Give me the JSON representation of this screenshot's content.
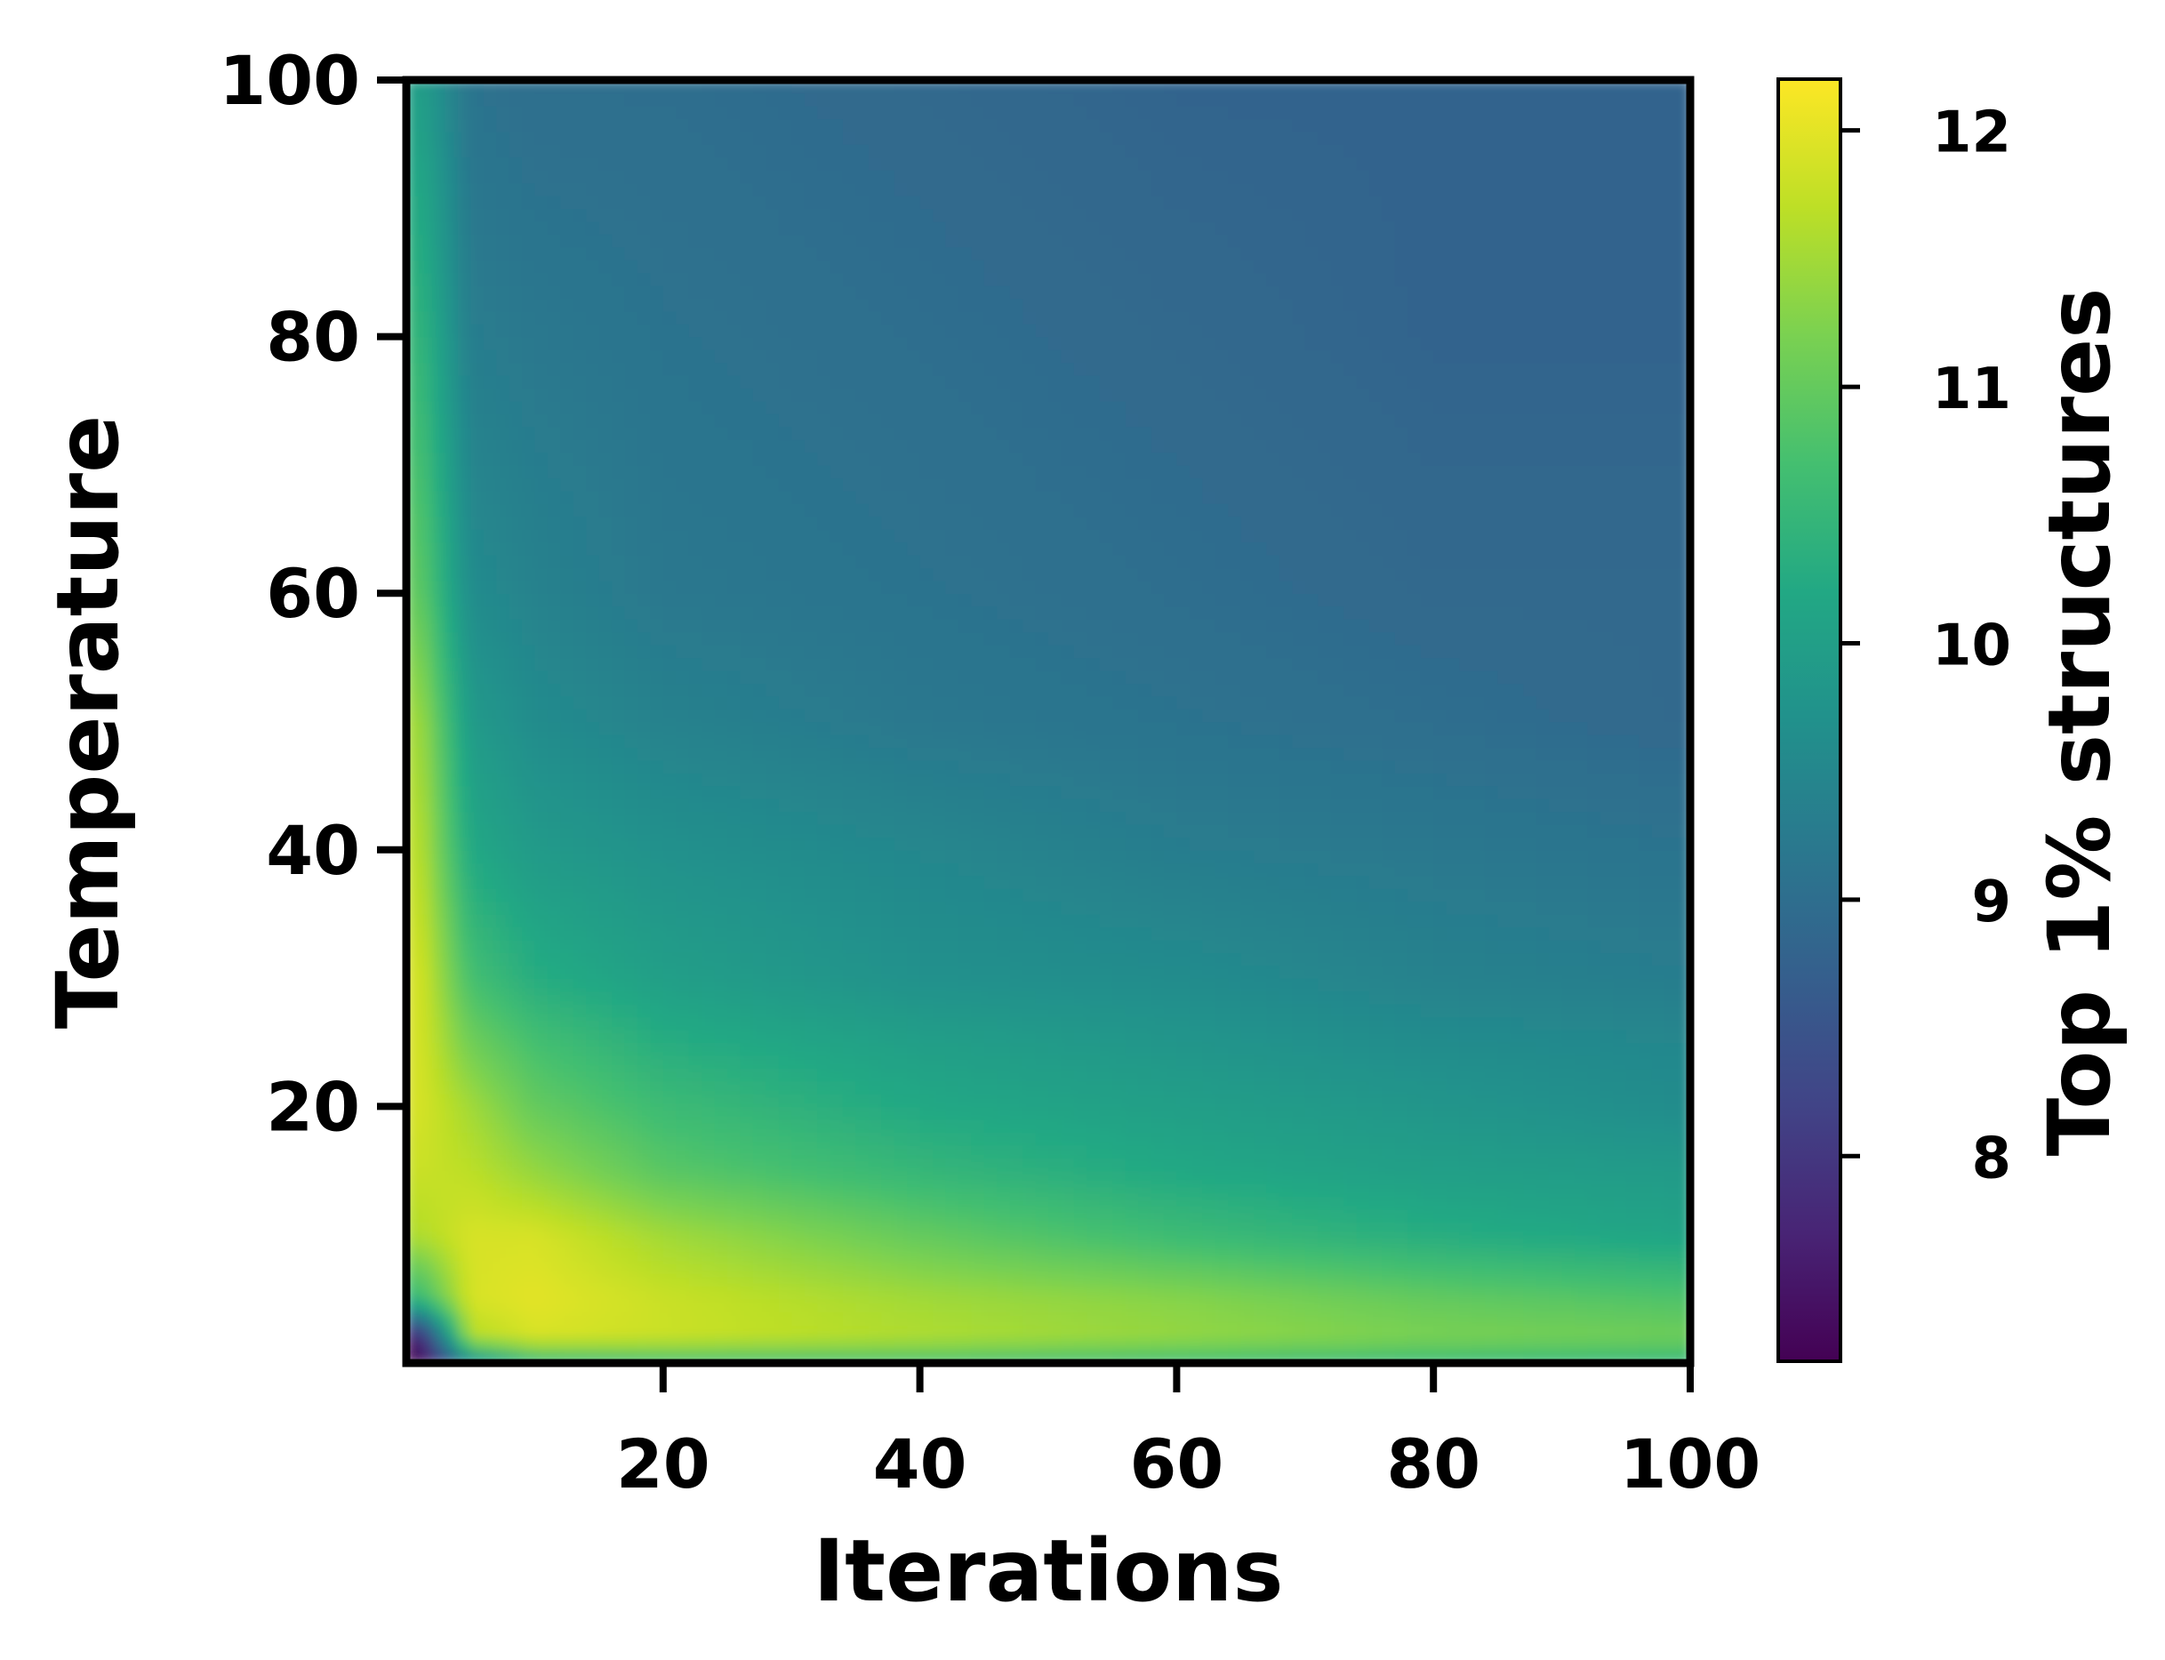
{
  "chart_data": {
    "type": "heatmap",
    "title": "",
    "xlabel": "Iterations",
    "ylabel": "Temperature",
    "colorbar_label": "Top 1% structures",
    "colormap": "viridis",
    "x_range": [
      0,
      100
    ],
    "y_range": [
      0,
      100
    ],
    "value_range": [
      7.2,
      12.2
    ],
    "x_ticks": [
      20,
      40,
      60,
      80,
      100
    ],
    "y_ticks": [
      20,
      40,
      60,
      80,
      100
    ],
    "colorbar_ticks": [
      8,
      9,
      10,
      11,
      12
    ],
    "grid": false,
    "approx_values": {
      "temperature_levels": [
        0.5,
        2,
        5,
        10,
        15,
        20,
        25,
        30,
        40,
        50,
        60,
        80,
        100
      ],
      "iteration_levels": [
        1,
        5,
        10,
        20,
        40,
        60,
        80,
        100
      ],
      "values": [
        [
          7.3,
          10.0,
          10.8,
          10.9,
          10.9,
          10.8,
          10.7,
          10.6
        ],
        [
          7.6,
          11.6,
          11.9,
          11.8,
          11.6,
          11.4,
          11.2,
          11.1
        ],
        [
          10.5,
          11.9,
          12.0,
          11.8,
          11.5,
          11.3,
          11.0,
          10.8
        ],
        [
          11.6,
          11.9,
          11.9,
          11.5,
          11.0,
          10.6,
          10.3,
          10.1
        ],
        [
          11.8,
          11.7,
          11.4,
          10.9,
          10.5,
          10.2,
          10.0,
          9.9
        ],
        [
          11.9,
          11.5,
          11.0,
          10.6,
          10.2,
          10.0,
          9.8,
          9.6
        ],
        [
          11.9,
          11.1,
          10.7,
          10.3,
          10.0,
          9.8,
          9.6,
          9.5
        ],
        [
          11.9,
          10.7,
          10.3,
          10.0,
          9.7,
          9.6,
          9.4,
          9.3
        ],
        [
          11.7,
          10.2,
          9.9,
          9.7,
          9.5,
          9.3,
          9.2,
          9.1
        ],
        [
          11.5,
          9.9,
          9.6,
          9.4,
          9.2,
          9.1,
          9.0,
          8.9
        ],
        [
          11.0,
          9.6,
          9.4,
          9.2,
          9.1,
          9.0,
          8.9,
          8.9
        ],
        [
          10.5,
          9.3,
          9.2,
          9.1,
          9.0,
          8.9,
          8.8,
          8.8
        ],
        [
          10.0,
          9.1,
          9.0,
          9.0,
          8.9,
          8.8,
          8.8,
          8.8
        ]
      ]
    }
  }
}
